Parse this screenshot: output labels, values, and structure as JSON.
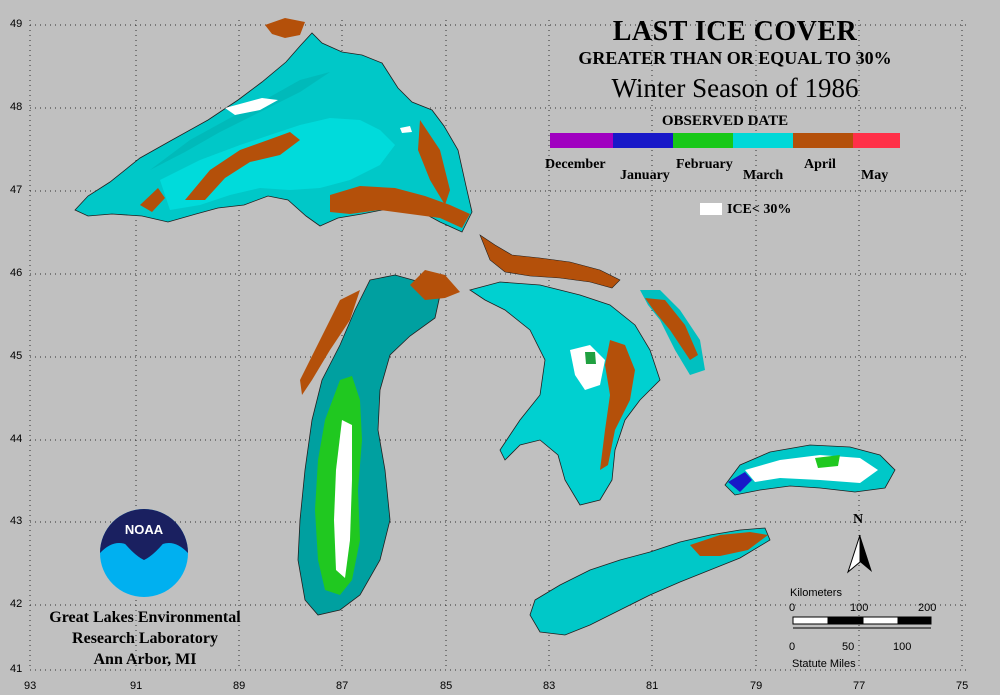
{
  "title": {
    "main": "LAST ICE COVER",
    "subtitle": "GREATER THAN OR EQUAL TO 30%",
    "season": "Winter Season of 1986"
  },
  "legend": {
    "title": "OBSERVED DATE",
    "months": [
      "December",
      "January",
      "February",
      "March",
      "April",
      "May"
    ],
    "ice_key": "ICE< 30%",
    "colors": {
      "december": "#a000c0",
      "january": "#1818c8",
      "february": "#18c818",
      "march": "#00d8d8",
      "april": "#b4500a",
      "may": "#ff3048",
      "ice_below_30": "#ffffff"
    }
  },
  "axes": {
    "latitudes": [
      "49",
      "48",
      "47",
      "46",
      "45",
      "44",
      "43",
      "42",
      "41"
    ],
    "longitudes": [
      "93",
      "91",
      "89",
      "87",
      "85",
      "83",
      "81",
      "79",
      "77",
      "75"
    ]
  },
  "organization": {
    "logo_text": "NOAA",
    "line1": "Great Lakes Environmental",
    "line2": "Research Laboratory",
    "line3": "Ann Arbor, MI"
  },
  "scale": {
    "km_title": "Kilometers",
    "km_ticks": [
      "0",
      "100",
      "200"
    ],
    "mile_ticks": [
      "0",
      "50",
      "100"
    ],
    "mile_title": "Statute Miles",
    "north": "N"
  }
}
